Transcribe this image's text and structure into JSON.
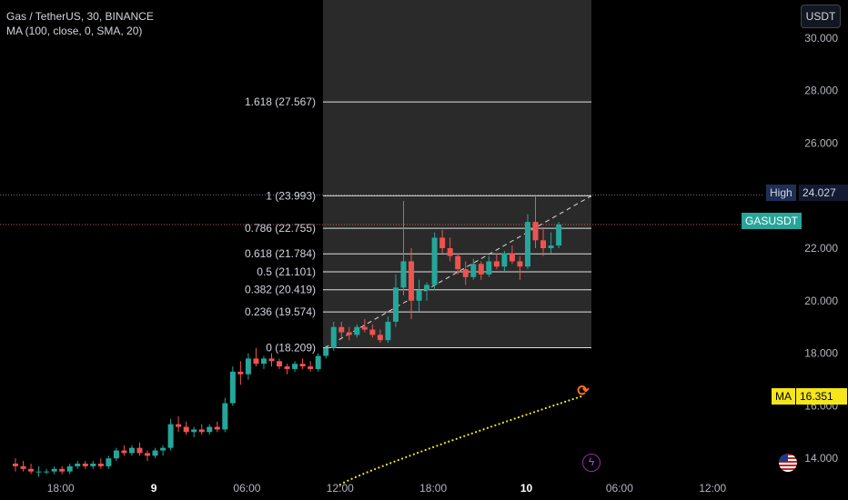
{
  "legend": {
    "symbol_line": "Gas / TetherUS, 30, BINANCE",
    "indicator_line": "MA (100, close, 0, SMA, 20)"
  },
  "toolbar": {
    "currency": "USDT"
  },
  "badges": {
    "high_label": "High",
    "high_value": "24.027",
    "symbol_label": "GASUSDT",
    "ma_label": "MA",
    "ma_value": "16.351"
  },
  "colors": {
    "up": "#26a69a",
    "down": "#ef5350",
    "ma": "#f5e61b",
    "fib_zone": "#2a2a2a",
    "fib_line": "#e0e0e0"
  },
  "icons": [
    "flash-icon",
    "us-flag-icon",
    "replay-icon"
  ],
  "chart_data": {
    "type": "candlestick",
    "title": "Gas / TetherUS, 30, BINANCE",
    "y_ticks": [
      "14.000",
      "16.000",
      "18.000",
      "20.000",
      "22.000",
      "24.000",
      "26.000",
      "28.000",
      "30.000"
    ],
    "ylim": [
      12.9,
      30.2
    ],
    "x_ticks": [
      {
        "label": "18:00",
        "bold": false,
        "bar": 7
      },
      {
        "label": "9",
        "bold": true,
        "bar": 19
      },
      {
        "label": "06:00",
        "bold": false,
        "bar": 31
      },
      {
        "label": "12:00",
        "bold": false,
        "bar": 43
      },
      {
        "label": "18:00",
        "bold": false,
        "bar": 55
      },
      {
        "label": "10",
        "bold": true,
        "bar": 67
      },
      {
        "label": "06:00",
        "bold": false,
        "bar": 79
      },
      {
        "label": "12:00",
        "bold": false,
        "bar": 91
      }
    ],
    "candles": [
      [
        13.8,
        14.0,
        13.5,
        13.7
      ],
      [
        13.7,
        13.9,
        13.5,
        13.6
      ],
      [
        13.6,
        13.8,
        13.4,
        13.5
      ],
      [
        13.5,
        13.7,
        13.3,
        13.5
      ],
      [
        13.5,
        13.6,
        13.4,
        13.5
      ],
      [
        13.5,
        13.7,
        13.4,
        13.6
      ],
      [
        13.6,
        13.7,
        13.4,
        13.5
      ],
      [
        13.5,
        13.8,
        13.4,
        13.7
      ],
      [
        13.7,
        13.9,
        13.6,
        13.8
      ],
      [
        13.8,
        13.9,
        13.6,
        13.7
      ],
      [
        13.7,
        13.9,
        13.6,
        13.8
      ],
      [
        13.8,
        14.0,
        13.6,
        13.7
      ],
      [
        13.7,
        14.1,
        13.6,
        14.0
      ],
      [
        14.0,
        14.4,
        13.9,
        14.3
      ],
      [
        14.3,
        14.5,
        14.1,
        14.2
      ],
      [
        14.2,
        14.5,
        14.1,
        14.4
      ],
      [
        14.4,
        14.6,
        14.1,
        14.2
      ],
      [
        14.2,
        14.3,
        13.9,
        14.1
      ],
      [
        14.1,
        14.4,
        14.0,
        14.3
      ],
      [
        14.3,
        14.5,
        14.1,
        14.4
      ],
      [
        14.4,
        15.5,
        14.3,
        15.3
      ],
      [
        15.3,
        15.6,
        15.0,
        15.2
      ],
      [
        15.2,
        15.4,
        14.9,
        15.0
      ],
      [
        15.0,
        15.2,
        14.8,
        15.1
      ],
      [
        15.1,
        15.3,
        14.9,
        15.0
      ],
      [
        15.0,
        15.3,
        14.9,
        15.2
      ],
      [
        15.2,
        15.4,
        15.0,
        15.1
      ],
      [
        15.1,
        16.3,
        15.0,
        16.1
      ],
      [
        16.1,
        17.5,
        16.0,
        17.3
      ],
      [
        17.3,
        17.7,
        16.8,
        17.2
      ],
      [
        17.2,
        18.0,
        17.0,
        17.8
      ],
      [
        17.8,
        18.2,
        17.5,
        17.6
      ],
      [
        17.6,
        17.9,
        17.4,
        17.8
      ],
      [
        17.8,
        18.0,
        17.5,
        17.7
      ],
      [
        17.7,
        17.8,
        17.4,
        17.5
      ],
      [
        17.5,
        17.6,
        17.2,
        17.4
      ],
      [
        17.4,
        17.7,
        17.3,
        17.6
      ],
      [
        17.6,
        17.8,
        17.4,
        17.5
      ],
      [
        17.5,
        17.7,
        17.3,
        17.4
      ],
      [
        17.4,
        18.0,
        17.3,
        17.9
      ],
      [
        17.9,
        18.3,
        17.8,
        18.2
      ],
      [
        18.2,
        19.2,
        18.1,
        19.0
      ],
      [
        19.0,
        19.2,
        18.6,
        18.8
      ],
      [
        18.8,
        19.0,
        18.5,
        18.7
      ],
      [
        18.7,
        19.1,
        18.6,
        19.0
      ],
      [
        19.0,
        19.3,
        18.8,
        18.9
      ],
      [
        18.9,
        19.1,
        18.6,
        18.7
      ],
      [
        18.7,
        18.9,
        18.4,
        18.5
      ],
      [
        18.5,
        19.4,
        18.4,
        19.2
      ],
      [
        19.2,
        21.0,
        19.0,
        20.5
      ],
      [
        20.5,
        23.8,
        20.2,
        21.5
      ],
      [
        21.5,
        22.0,
        19.3,
        20.0
      ],
      [
        20.0,
        20.8,
        19.6,
        20.4
      ],
      [
        20.4,
        20.7,
        20.0,
        20.6
      ],
      [
        20.6,
        22.6,
        20.4,
        22.4
      ],
      [
        22.4,
        22.7,
        21.8,
        22.0
      ],
      [
        22.0,
        22.4,
        21.5,
        21.7
      ],
      [
        21.7,
        21.8,
        21.0,
        21.2
      ],
      [
        21.2,
        21.5,
        20.6,
        20.9
      ],
      [
        20.9,
        21.6,
        20.8,
        21.4
      ],
      [
        21.4,
        21.5,
        20.8,
        21.0
      ],
      [
        21.0,
        21.7,
        20.9,
        21.5
      ],
      [
        21.5,
        21.8,
        21.2,
        21.3
      ],
      [
        21.3,
        21.9,
        21.1,
        21.8
      ],
      [
        21.8,
        22.1,
        21.4,
        21.5
      ],
      [
        21.5,
        21.7,
        20.8,
        21.3
      ],
      [
        21.3,
        23.3,
        21.2,
        23.0
      ],
      [
        23.0,
        24.0,
        22.0,
        22.3
      ],
      [
        22.3,
        22.8,
        21.7,
        22.0
      ],
      [
        22.0,
        22.6,
        21.8,
        22.1
      ],
      [
        22.1,
        23.0,
        22.0,
        22.9
      ]
    ],
    "moving_average": {
      "name": "MA",
      "length": 100,
      "source": "close",
      "type": "SMA",
      "last": 16.351
    },
    "fibonacci": {
      "levels": [
        {
          "ratio": "1.618",
          "price": 27.567,
          "label": "1.618 (27.567)"
        },
        {
          "ratio": "1",
          "price": 23.993,
          "label": "1 (23.993)"
        },
        {
          "ratio": "0.786",
          "price": 22.755,
          "label": "0.786 (22.755)"
        },
        {
          "ratio": "0.618",
          "price": 21.784,
          "label": "0.618 (21.784)"
        },
        {
          "ratio": "0.5",
          "price": 21.101,
          "label": "0.5 (21.101)"
        },
        {
          "ratio": "0.382",
          "price": 20.419,
          "label": "0.382 (20.419)"
        },
        {
          "ratio": "0.236",
          "price": 19.574,
          "label": "0.236 (19.574)"
        },
        {
          "ratio": "0",
          "price": 18.209,
          "label": "0 (18.209)"
        }
      ]
    },
    "price_lines": {
      "high": 24.027,
      "last": 22.9
    }
  }
}
